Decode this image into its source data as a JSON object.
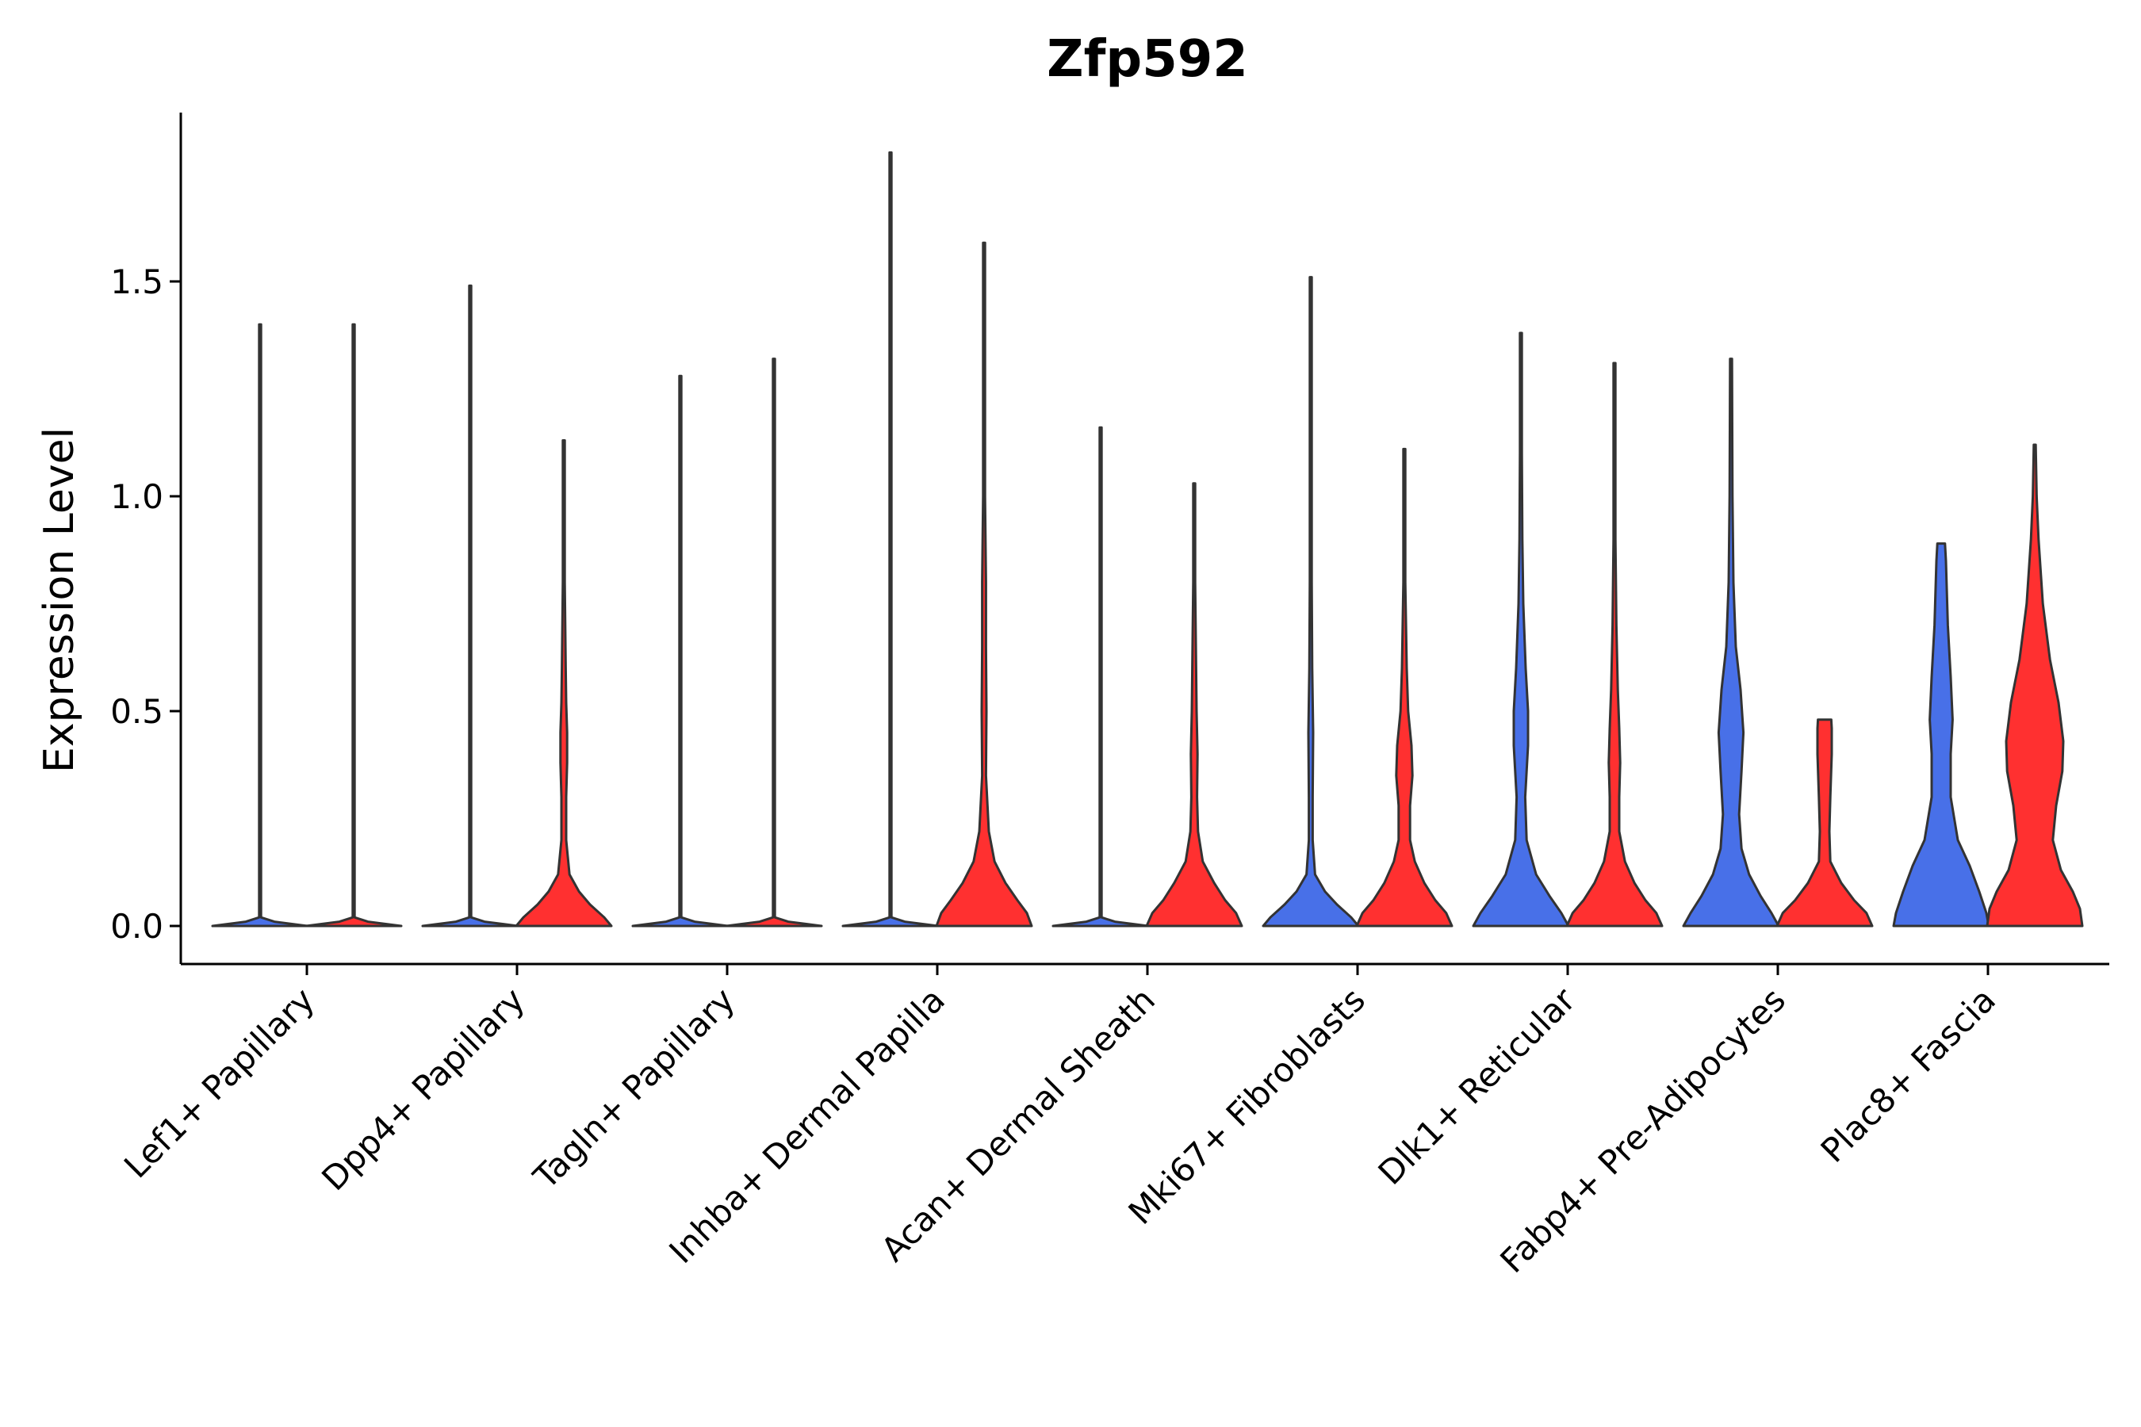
{
  "chart_data": {
    "type": "violin",
    "title": "Zfp592",
    "xlabel": "",
    "ylabel": "Expression Level",
    "ylim": [
      -0.09,
      1.9
    ],
    "yticks": [
      0.0,
      0.5,
      1.0,
      1.5
    ],
    "ytick_labels": [
      "0.0",
      "0.5",
      "1.0",
      "1.5"
    ],
    "categories": [
      "Lef1+ Papillary",
      "Dpp4+ Papillary",
      "Tagln+ Papillary",
      "Inhba+ Dermal Papilla",
      "Acan+ Dermal Sheath",
      "Mki67+ Fibroblasts",
      "Dlk1+ Reticular",
      "Fabp4+ Pre-Adipocytes",
      "Plac8+ Fascia"
    ],
    "series": [
      {
        "name": "blue",
        "color": "#4870E8",
        "violins": [
          {
            "max": 1.4,
            "profile": [
              [
                0,
                1
              ],
              [
                0.01,
                0.3
              ],
              [
                0.02,
                0.02
              ],
              [
                0.2,
                0.01
              ],
              [
                1.4,
                0.01
              ]
            ]
          },
          {
            "max": 1.49,
            "profile": [
              [
                0,
                1
              ],
              [
                0.01,
                0.3
              ],
              [
                0.02,
                0.02
              ],
              [
                0.2,
                0.01
              ],
              [
                1.49,
                0.01
              ]
            ]
          },
          {
            "max": 1.28,
            "profile": [
              [
                0,
                1
              ],
              [
                0.01,
                0.3
              ],
              [
                0.02,
                0.02
              ],
              [
                0.2,
                0.01
              ],
              [
                1.28,
                0.01
              ]
            ]
          },
          {
            "max": 1.8,
            "profile": [
              [
                0,
                1
              ],
              [
                0.01,
                0.3
              ],
              [
                0.02,
                0.02
              ],
              [
                0.2,
                0.01
              ],
              [
                1.8,
                0.01
              ]
            ]
          },
          {
            "max": 1.16,
            "profile": [
              [
                0,
                1
              ],
              [
                0.01,
                0.3
              ],
              [
                0.02,
                0.02
              ],
              [
                0.2,
                0.01
              ],
              [
                1.16,
                0.01
              ]
            ]
          },
          {
            "max": 1.51,
            "profile": [
              [
                0,
                1
              ],
              [
                0.02,
                0.85
              ],
              [
                0.05,
                0.55
              ],
              [
                0.08,
                0.3
              ],
              [
                0.12,
                0.09
              ],
              [
                0.2,
                0.04
              ],
              [
                0.3,
                0.04
              ],
              [
                0.45,
                0.05
              ],
              [
                0.6,
                0.03
              ],
              [
                0.8,
                0.02
              ],
              [
                1.0,
                0.01
              ],
              [
                1.51,
                0.01
              ]
            ]
          },
          {
            "max": 1.38,
            "profile": [
              [
                0,
                1
              ],
              [
                0.03,
                0.85
              ],
              [
                0.07,
                0.6
              ],
              [
                0.12,
                0.32
              ],
              [
                0.2,
                0.12
              ],
              [
                0.3,
                0.09
              ],
              [
                0.42,
                0.15
              ],
              [
                0.5,
                0.15
              ],
              [
                0.6,
                0.1
              ],
              [
                0.75,
                0.05
              ],
              [
                0.9,
                0.03
              ],
              [
                1.1,
                0.02
              ],
              [
                1.38,
                0.01
              ]
            ]
          },
          {
            "max": 1.32,
            "profile": [
              [
                0,
                1
              ],
              [
                0.03,
                0.85
              ],
              [
                0.07,
                0.62
              ],
              [
                0.12,
                0.38
              ],
              [
                0.18,
                0.22
              ],
              [
                0.26,
                0.17
              ],
              [
                0.36,
                0.22
              ],
              [
                0.45,
                0.26
              ],
              [
                0.55,
                0.2
              ],
              [
                0.65,
                0.1
              ],
              [
                0.8,
                0.05
              ],
              [
                1.0,
                0.03
              ],
              [
                1.32,
                0.01
              ]
            ]
          },
          {
            "max": 0.89,
            "profile": [
              [
                0,
                1
              ],
              [
                0.03,
                0.95
              ],
              [
                0.08,
                0.8
              ],
              [
                0.14,
                0.6
              ],
              [
                0.2,
                0.35
              ],
              [
                0.3,
                0.2
              ],
              [
                0.4,
                0.2
              ],
              [
                0.48,
                0.24
              ],
              [
                0.58,
                0.2
              ],
              [
                0.7,
                0.14
              ],
              [
                0.85,
                0.1
              ],
              [
                0.89,
                0.08
              ]
            ]
          }
        ]
      },
      {
        "name": "red",
        "color": "#FF3030",
        "violins": [
          {
            "max": 1.4,
            "profile": [
              [
                0,
                1
              ],
              [
                0.01,
                0.3
              ],
              [
                0.02,
                0.02
              ],
              [
                0.2,
                0.01
              ],
              [
                1.4,
                0.01
              ]
            ]
          },
          {
            "max": 1.13,
            "profile": [
              [
                0,
                1
              ],
              [
                0.02,
                0.85
              ],
              [
                0.05,
                0.55
              ],
              [
                0.08,
                0.32
              ],
              [
                0.12,
                0.12
              ],
              [
                0.2,
                0.05
              ],
              [
                0.3,
                0.05
              ],
              [
                0.38,
                0.07
              ],
              [
                0.45,
                0.07
              ],
              [
                0.52,
                0.05
              ],
              [
                0.6,
                0.04
              ],
              [
                0.8,
                0.02
              ],
              [
                1.0,
                0.01
              ],
              [
                1.13,
                0.01
              ]
            ]
          },
          {
            "max": 1.32,
            "profile": [
              [
                0,
                1
              ],
              [
                0.01,
                0.3
              ],
              [
                0.02,
                0.02
              ],
              [
                0.2,
                0.01
              ],
              [
                1.32,
                0.01
              ]
            ]
          },
          {
            "max": 1.59,
            "profile": [
              [
                0,
                1
              ],
              [
                0.03,
                0.9
              ],
              [
                0.06,
                0.7
              ],
              [
                0.1,
                0.45
              ],
              [
                0.15,
                0.22
              ],
              [
                0.22,
                0.1
              ],
              [
                0.35,
                0.04
              ],
              [
                0.5,
                0.05
              ],
              [
                0.65,
                0.04
              ],
              [
                0.8,
                0.04
              ],
              [
                1.0,
                0.02
              ],
              [
                1.2,
                0.01
              ],
              [
                1.59,
                0.01
              ]
            ]
          },
          {
            "max": 1.03,
            "profile": [
              [
                0,
                1
              ],
              [
                0.03,
                0.88
              ],
              [
                0.06,
                0.65
              ],
              [
                0.1,
                0.42
              ],
              [
                0.15,
                0.18
              ],
              [
                0.22,
                0.08
              ],
              [
                0.3,
                0.06
              ],
              [
                0.4,
                0.07
              ],
              [
                0.5,
                0.05
              ],
              [
                0.6,
                0.04
              ],
              [
                0.8,
                0.02
              ],
              [
                1.03,
                0.01
              ]
            ]
          },
          {
            "max": 1.11,
            "profile": [
              [
                0,
                1
              ],
              [
                0.03,
                0.88
              ],
              [
                0.06,
                0.65
              ],
              [
                0.1,
                0.42
              ],
              [
                0.15,
                0.22
              ],
              [
                0.2,
                0.12
              ],
              [
                0.28,
                0.12
              ],
              [
                0.35,
                0.17
              ],
              [
                0.42,
                0.15
              ],
              [
                0.5,
                0.08
              ],
              [
                0.6,
                0.05
              ],
              [
                0.8,
                0.02
              ],
              [
                1.11,
                0.01
              ]
            ]
          },
          {
            "max": 1.31,
            "profile": [
              [
                0,
                1
              ],
              [
                0.03,
                0.88
              ],
              [
                0.06,
                0.65
              ],
              [
                0.1,
                0.42
              ],
              [
                0.15,
                0.22
              ],
              [
                0.22,
                0.1
              ],
              [
                0.3,
                0.1
              ],
              [
                0.38,
                0.12
              ],
              [
                0.46,
                0.1
              ],
              [
                0.55,
                0.07
              ],
              [
                0.7,
                0.04
              ],
              [
                0.9,
                0.02
              ],
              [
                1.31,
                0.01
              ]
            ]
          },
          {
            "max": 0.48,
            "profile": [
              [
                0,
                1
              ],
              [
                0.03,
                0.88
              ],
              [
                0.06,
                0.62
              ],
              [
                0.1,
                0.35
              ],
              [
                0.15,
                0.12
              ],
              [
                0.22,
                0.1
              ],
              [
                0.3,
                0.12
              ],
              [
                0.4,
                0.15
              ],
              [
                0.46,
                0.15
              ],
              [
                0.48,
                0.14
              ]
            ]
          },
          {
            "max": 1.12,
            "profile": [
              [
                0,
                1
              ],
              [
                0.04,
                0.95
              ],
              [
                0.08,
                0.8
              ],
              [
                0.13,
                0.55
              ],
              [
                0.2,
                0.38
              ],
              [
                0.28,
                0.45
              ],
              [
                0.36,
                0.58
              ],
              [
                0.43,
                0.6
              ],
              [
                0.52,
                0.5
              ],
              [
                0.62,
                0.32
              ],
              [
                0.75,
                0.17
              ],
              [
                0.9,
                0.08
              ],
              [
                1.0,
                0.04
              ],
              [
                1.12,
                0.01
              ]
            ]
          }
        ]
      }
    ]
  }
}
